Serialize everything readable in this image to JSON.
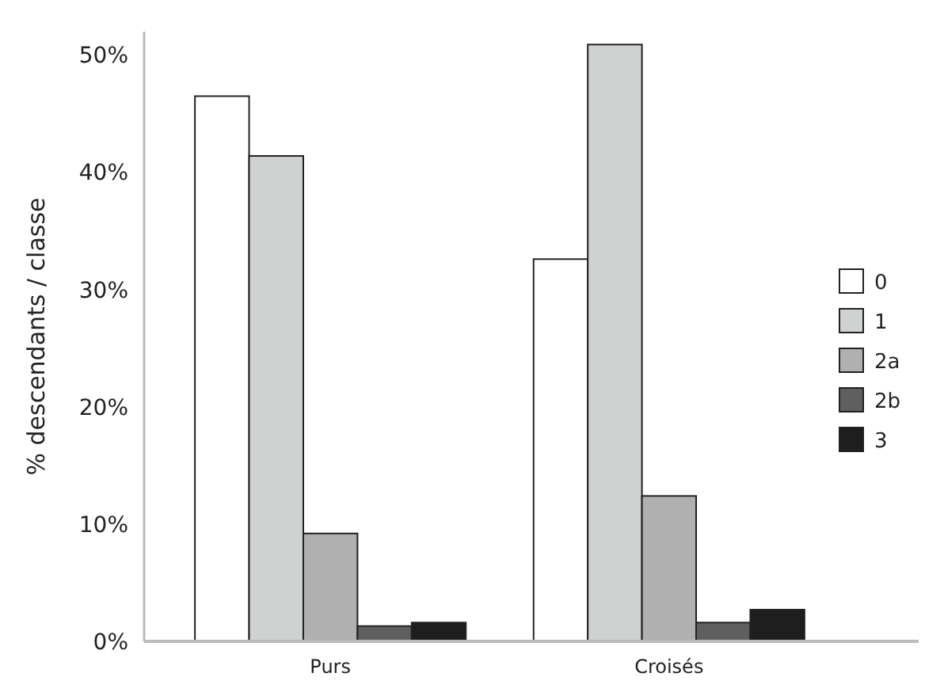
{
  "chart_data": {
    "type": "bar",
    "ylabel": "% descendants / classe",
    "categories": [
      "Purs",
      "Croisés"
    ],
    "series": [
      {
        "name": "0",
        "color": "#ffffff",
        "values": [
          46.5,
          32.6
        ]
      },
      {
        "name": "1",
        "color": "#d0d2d2",
        "values": [
          41.4,
          50.9
        ]
      },
      {
        "name": "2a",
        "color": "#b0b0b0",
        "values": [
          9.2,
          12.4
        ]
      },
      {
        "name": "2b",
        "color": "#5f5f5f",
        "values": [
          1.3,
          1.6
        ]
      },
      {
        "name": "3",
        "color": "#1e1e1e",
        "values": [
          1.6,
          2.7
        ]
      }
    ],
    "ylim": [
      0,
      52
    ],
    "yticks": [
      {
        "value": 0,
        "label": "0%"
      },
      {
        "value": 10,
        "label": "10%"
      },
      {
        "value": 20,
        "label": "20%"
      },
      {
        "value": 30,
        "label": "30%"
      },
      {
        "value": 40,
        "label": "40%"
      },
      {
        "value": 50,
        "label": "50%"
      }
    ],
    "grid": false,
    "legend": "right"
  }
}
